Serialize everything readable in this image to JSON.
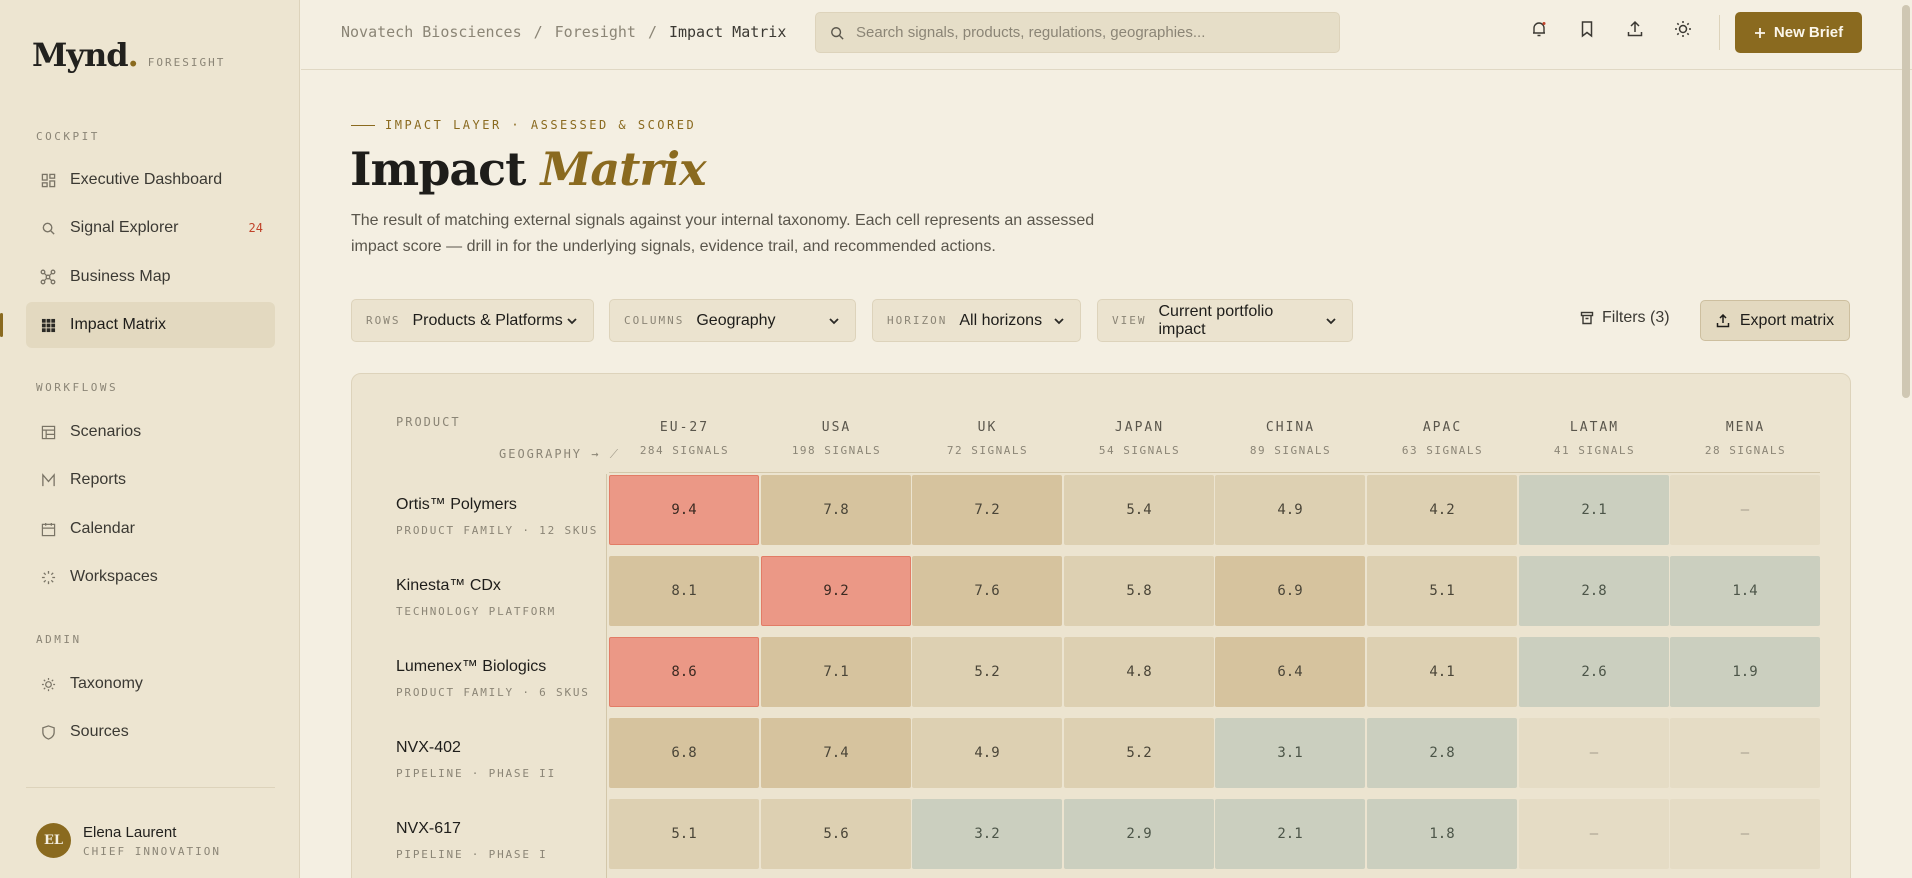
{
  "sidebar": {
    "brand": {
      "logo": "Mynd",
      "logo_dot": ".",
      "sub": "FORESIGHT"
    },
    "sections": {
      "cockpit": "COCKPIT",
      "workflows": "WORKFLOWS",
      "admin": "ADMIN"
    },
    "items": {
      "executive_dashboard": "Executive Dashboard",
      "signal_explorer": "Signal Explorer",
      "signal_explorer_badge": "24",
      "business_map": "Business Map",
      "impact_matrix": "Impact Matrix",
      "scenarios": "Scenarios",
      "reports": "Reports",
      "calendar": "Calendar",
      "workspaces": "Workspaces",
      "taxonomy": "Taxonomy",
      "sources": "Sources"
    },
    "user": {
      "initials": "EL",
      "name": "Elena Laurent",
      "role": "CHIEF INNOVATION"
    }
  },
  "topbar": {
    "breadcrumb": [
      "Novatech Biosciences",
      "Foresight",
      "Impact Matrix"
    ],
    "breadcrumb_sep": "/",
    "search_placeholder": "Search signals, products, regulations, geographies...",
    "new_brief": "New Brief"
  },
  "header": {
    "eyebrow": "IMPACT LAYER · ASSESSED & SCORED",
    "title_main": "Impact",
    "title_accent": "Matrix",
    "description": "The result of matching external signals against your internal taxonomy. Each cell represents an assessed impact score — drill in for the underlying signals, evidence trail, and recommended actions."
  },
  "controls": {
    "rows": {
      "label": "ROWS",
      "value": "Products & Platforms"
    },
    "columns": {
      "label": "COLUMNS",
      "value": "Geography"
    },
    "horizon": {
      "label": "HORIZON",
      "value": "All horizons"
    },
    "view": {
      "label": "VIEW",
      "value": "Current portfolio impact"
    },
    "filters": "Filters (3)",
    "export": "Export matrix"
  },
  "matrix": {
    "corner_rows": "PRODUCT",
    "corner_cols": "GEOGRAPHY →",
    "columns": [
      {
        "name": "EU-27",
        "signals": "284 SIGNALS"
      },
      {
        "name": "USA",
        "signals": "198 SIGNALS"
      },
      {
        "name": "UK",
        "signals": "72 SIGNALS"
      },
      {
        "name": "JAPAN",
        "signals": "54 SIGNALS"
      },
      {
        "name": "CHINA",
        "signals": "89 SIGNALS"
      },
      {
        "name": "APAC",
        "signals": "63 SIGNALS"
      },
      {
        "name": "LATAM",
        "signals": "41 SIGNALS"
      },
      {
        "name": "MENA",
        "signals": "28 SIGNALS"
      }
    ],
    "rows": [
      {
        "name": "Ortis™ Polymers",
        "sub": "PRODUCT FAMILY · 12 SKUS",
        "cells": [
          {
            "v": "9.4",
            "tier": "hi"
          },
          {
            "v": "7.8",
            "tier": "mh"
          },
          {
            "v": "7.2",
            "tier": "mh"
          },
          {
            "v": "5.4",
            "tier": "md"
          },
          {
            "v": "4.9",
            "tier": "md"
          },
          {
            "v": "4.2",
            "tier": "md"
          },
          {
            "v": "2.1",
            "tier": "lo"
          },
          {
            "v": "—",
            "tier": "na"
          }
        ]
      },
      {
        "name": "Kinesta™ CDx",
        "sub": "TECHNOLOGY PLATFORM",
        "cells": [
          {
            "v": "8.1",
            "tier": "mh"
          },
          {
            "v": "9.2",
            "tier": "hi"
          },
          {
            "v": "7.6",
            "tier": "mh"
          },
          {
            "v": "5.8",
            "tier": "md"
          },
          {
            "v": "6.9",
            "tier": "mh"
          },
          {
            "v": "5.1",
            "tier": "md"
          },
          {
            "v": "2.8",
            "tier": "lo"
          },
          {
            "v": "1.4",
            "tier": "lo"
          }
        ]
      },
      {
        "name": "Lumenex™ Biologics",
        "sub": "PRODUCT FAMILY · 6 SKUS",
        "cells": [
          {
            "v": "8.6",
            "tier": "hi"
          },
          {
            "v": "7.1",
            "tier": "mh"
          },
          {
            "v": "5.2",
            "tier": "md"
          },
          {
            "v": "4.8",
            "tier": "md"
          },
          {
            "v": "6.4",
            "tier": "mh"
          },
          {
            "v": "4.1",
            "tier": "md"
          },
          {
            "v": "2.6",
            "tier": "lo"
          },
          {
            "v": "1.9",
            "tier": "lo"
          }
        ]
      },
      {
        "name": "NVX-402",
        "sub": "PIPELINE · PHASE II",
        "cells": [
          {
            "v": "6.8",
            "tier": "mh"
          },
          {
            "v": "7.4",
            "tier": "mh"
          },
          {
            "v": "4.9",
            "tier": "md"
          },
          {
            "v": "5.2",
            "tier": "md"
          },
          {
            "v": "3.1",
            "tier": "lo"
          },
          {
            "v": "2.8",
            "tier": "lo"
          },
          {
            "v": "—",
            "tier": "na"
          },
          {
            "v": "—",
            "tier": "na"
          }
        ]
      },
      {
        "name": "NVX-617",
        "sub": "PIPELINE · PHASE I",
        "cells": [
          {
            "v": "5.1",
            "tier": "md"
          },
          {
            "v": "5.6",
            "tier": "md"
          },
          {
            "v": "3.2",
            "tier": "lo"
          },
          {
            "v": "2.9",
            "tier": "lo"
          },
          {
            "v": "2.1",
            "tier": "lo"
          },
          {
            "v": "1.8",
            "tier": "lo"
          },
          {
            "v": "—",
            "tier": "na"
          },
          {
            "v": "—",
            "tier": "na"
          }
        ]
      }
    ]
  },
  "colors": {
    "accent": "#8a6a1f",
    "high": "#eb9886",
    "med_high": "#d6c39e",
    "medium": "#ddd0b2",
    "low": "#cbcfbf",
    "badge": "#c0432a"
  }
}
